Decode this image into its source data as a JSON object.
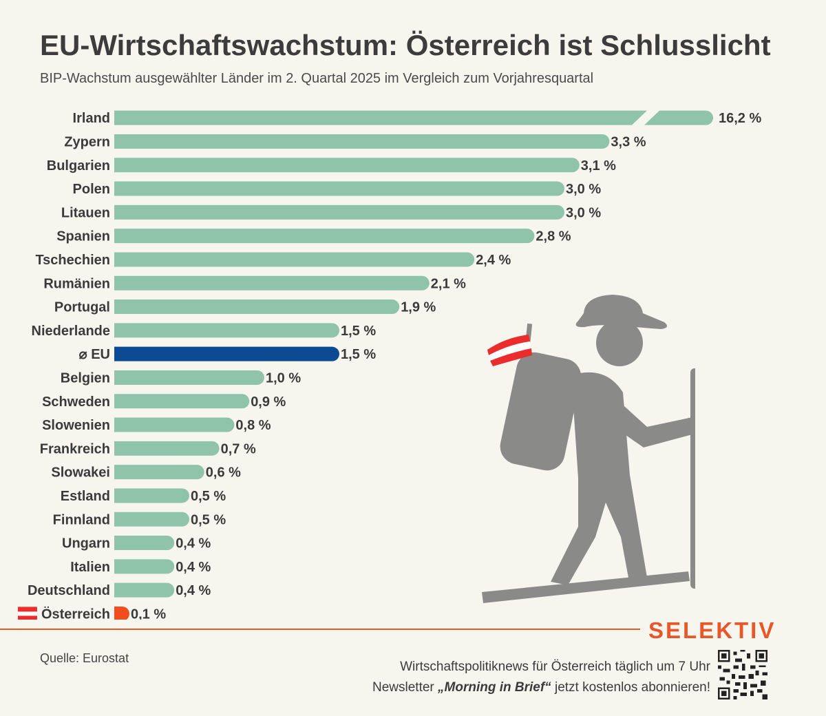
{
  "header": {
    "title": "EU-Wirtschaftswachstum: Österreich ist Schlusslicht",
    "subtitle": "BIP-Wachstum ausgewählter Länder im 2. Quartal 2025 im Vergleich zum Vorjahresquartal"
  },
  "chart_data": {
    "type": "bar",
    "orientation": "horizontal",
    "axis_break": true,
    "categories": [
      "Irland",
      "Zypern",
      "Bulgarien",
      "Polen",
      "Litauen",
      "Spanien",
      "Tschechien",
      "Rumänien",
      "Portugal",
      "Niederlande",
      "⌀ EU",
      "Belgien",
      "Schweden",
      "Slowenien",
      "Frankreich",
      "Slowakei",
      "Estland",
      "Finnland",
      "Ungarn",
      "Italien",
      "Deutschland",
      "Österreich"
    ],
    "values": [
      16.2,
      3.3,
      3.1,
      3.0,
      3.0,
      2.8,
      2.4,
      2.1,
      1.9,
      1.5,
      1.5,
      1.0,
      0.9,
      0.8,
      0.7,
      0.6,
      0.5,
      0.5,
      0.4,
      0.4,
      0.4,
      0.1
    ],
    "value_labels": [
      "16,2 %",
      "3,3 %",
      "3,1 %",
      "3,0 %",
      "3,0 %",
      "2,8 %",
      "2,4 %",
      "2,1 %",
      "1,9 %",
      "1,5 %",
      "1,5 %",
      "1,0 %",
      "0,9 %",
      "0,8 %",
      "0,7 %",
      "0,6 %",
      "0,5 %",
      "0,5 %",
      "0,4 %",
      "0,4 %",
      "0,4 %",
      "0,1 %"
    ],
    "colors": {
      "default": "#8fc4ab",
      "eu": "#0d4a94",
      "austria": "#f04e1f"
    },
    "highlight": {
      "⌀ EU": "eu",
      "Österreich": "austria"
    }
  },
  "footer": {
    "source": "Quelle: Eurostat",
    "brand": "SELEKTIV",
    "promo_line1": "Wirtschaftspolitiknews für Österreich täglich um 7 Uhr",
    "promo_line2_prefix": "Newsletter ",
    "promo_line2_bold": "„Morning in Brief“",
    "promo_line2_suffix": " jetzt kostenlos abonnieren!"
  },
  "icons": {
    "illustration": "hiker-with-austrian-flag-icon",
    "flag": "austria-flag-icon",
    "qr": "qr-code-icon"
  }
}
